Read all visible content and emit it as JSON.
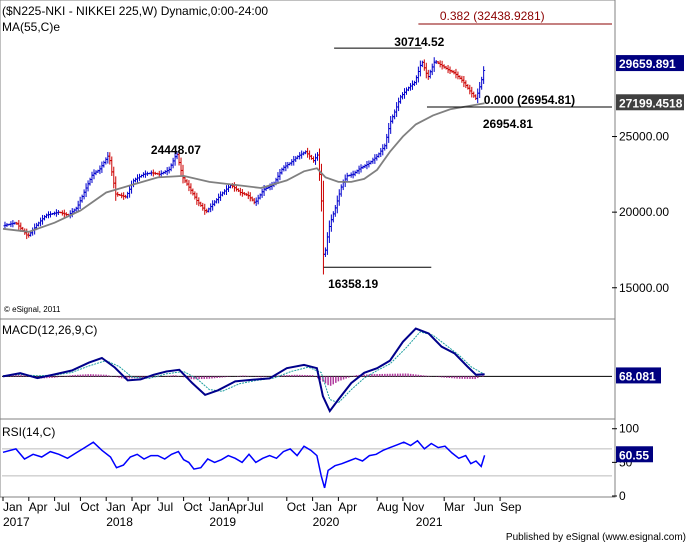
{
  "chart_data": [
    {
      "type": "candlestick",
      "title": "($N225-NKI - NIKKEI 225,W) Dynamic,0:00-24:00",
      "overlay_label": "MA(55,C)e",
      "ylim": [
        13000,
        33500
      ],
      "yticks": [
        15000,
        20000,
        25000
      ],
      "ytick_labels": [
        "15000.00",
        "20000.00",
        "25000.00"
      ],
      "x_labels": [
        {
          "m": 0,
          "text": "Jan"
        },
        {
          "m": 3,
          "text": "Apr"
        },
        {
          "m": 6,
          "text": "Jul"
        },
        {
          "m": 9,
          "text": "Oct"
        },
        {
          "m": 12,
          "text": "Jan"
        },
        {
          "m": 15,
          "text": "Apr"
        },
        {
          "m": 18,
          "text": "Jul"
        },
        {
          "m": 21,
          "text": "Oct"
        },
        {
          "m": 24,
          "text": "Jan"
        },
        {
          "m": 26.2,
          "text": "Apr"
        },
        {
          "m": 28.5,
          "text": "Jul"
        },
        {
          "m": 33,
          "text": "Oct"
        },
        {
          "m": 36,
          "text": "Jan"
        },
        {
          "m": 39,
          "text": "Apr"
        },
        {
          "m": 43.5,
          "text": "Aug"
        },
        {
          "m": 46.5,
          "text": "Nov"
        },
        {
          "m": 51.3,
          "text": "Mar"
        },
        {
          "m": 54.8,
          "text": "Jun"
        },
        {
          "m": 57.8,
          "text": "Sep"
        }
      ],
      "year_labels": [
        {
          "m": 0,
          "text": "2017"
        },
        {
          "m": 12,
          "text": "2018"
        },
        {
          "m": 24,
          "text": "2019"
        },
        {
          "m": 36,
          "text": "2020"
        },
        {
          "m": 48,
          "text": "2021"
        }
      ],
      "close_path": [
        [
          0,
          19100
        ],
        [
          1.5,
          19300
        ],
        [
          2.9,
          18400
        ],
        [
          4,
          19200
        ],
        [
          5,
          19800
        ],
        [
          6.5,
          20000
        ],
        [
          7.6,
          19800
        ],
        [
          8.6,
          20300
        ],
        [
          9.5,
          21400
        ],
        [
          10.4,
          22500
        ],
        [
          11.2,
          22800
        ],
        [
          12.3,
          23800
        ],
        [
          13.1,
          21200
        ],
        [
          14.3,
          21000
        ],
        [
          15.2,
          22100
        ],
        [
          16.3,
          22500
        ],
        [
          17.3,
          22600
        ],
        [
          18.2,
          22500
        ],
        [
          19.3,
          22800
        ],
        [
          20.2,
          23900
        ],
        [
          20.9,
          22300
        ],
        [
          21.9,
          21400
        ],
        [
          22.5,
          20800
        ],
        [
          23.6,
          20000
        ],
        [
          24.5,
          20600
        ],
        [
          25.4,
          21200
        ],
        [
          26.5,
          21800
        ],
        [
          27.6,
          21300
        ],
        [
          28.5,
          21100
        ],
        [
          29.3,
          20600
        ],
        [
          30.3,
          21500
        ],
        [
          31.4,
          21800
        ],
        [
          32.5,
          22900
        ],
        [
          33.5,
          23300
        ],
        [
          34.3,
          23700
        ],
        [
          35.2,
          24000
        ],
        [
          36.1,
          23400
        ],
        [
          36.6,
          23800
        ],
        [
          37.0,
          21200
        ],
        [
          37.3,
          16600
        ],
        [
          37.6,
          18000
        ],
        [
          38.0,
          19200
        ],
        [
          38.6,
          20200
        ],
        [
          39.4,
          21800
        ],
        [
          40.0,
          22400
        ],
        [
          40.7,
          22500
        ],
        [
          41.5,
          22900
        ],
        [
          42.5,
          23200
        ],
        [
          43.5,
          23700
        ],
        [
          44.4,
          24400
        ],
        [
          45.0,
          25900
        ],
        [
          45.6,
          26700
        ],
        [
          46.2,
          27600
        ],
        [
          47.1,
          28200
        ],
        [
          47.9,
          28600
        ],
        [
          48.7,
          30000
        ],
        [
          49.4,
          28900
        ],
        [
          50.2,
          30000
        ],
        [
          51.0,
          29700
        ],
        [
          51.8,
          29400
        ],
        [
          52.5,
          29200
        ],
        [
          53.4,
          28700
        ],
        [
          54.3,
          28000
        ],
        [
          55.0,
          27500
        ],
        [
          55.6,
          28600
        ],
        [
          56.0,
          29660
        ]
      ],
      "ma_path": [
        [
          0,
          18900
        ],
        [
          3,
          18700
        ],
        [
          6,
          19300
        ],
        [
          9,
          20100
        ],
        [
          12,
          21300
        ],
        [
          15,
          21800
        ],
        [
          18,
          22300
        ],
        [
          21,
          22400
        ],
        [
          24,
          22000
        ],
        [
          27,
          21800
        ],
        [
          30,
          21600
        ],
        [
          33,
          22100
        ],
        [
          35,
          22700
        ],
        [
          36.5,
          22900
        ],
        [
          37.5,
          22300
        ],
        [
          39,
          22000
        ],
        [
          40.5,
          22000
        ],
        [
          42,
          22200
        ],
        [
          43.5,
          22800
        ],
        [
          45,
          24000
        ],
        [
          46.5,
          25000
        ],
        [
          48,
          25800
        ],
        [
          50,
          26400
        ],
        [
          52,
          26800
        ],
        [
          54,
          27000
        ],
        [
          56,
          27199
        ]
      ],
      "reference_lines": [
        {
          "label": "0.382 (32438.9281)",
          "value": 32438.9281
        },
        {
          "label": "0.000 (26954.81)",
          "value": 26954.81
        }
      ],
      "annotations": [
        {
          "text": "30714.52",
          "value": 30714.52
        },
        {
          "text": "24448.07",
          "value": 24448.07
        },
        {
          "text": "26954.81",
          "value": 26954.81
        },
        {
          "text": "16358.19",
          "value": 16358.19
        }
      ],
      "last_price_tags": [
        {
          "text": "29659.891",
          "value": 29659.891,
          "color": "#000080"
        },
        {
          "text": "27199.4518",
          "value": 27199.4518,
          "color": "#404040"
        }
      ],
      "watermark": "© eSignal, 2011"
    },
    {
      "type": "line",
      "title": "MACD(12,26,9,C)",
      "ylim": [
        -1200,
        1650
      ],
      "histogram_path": [
        [
          0,
          0
        ],
        [
          2,
          60
        ],
        [
          4,
          -70
        ],
        [
          6,
          -40
        ],
        [
          8,
          40
        ],
        [
          10,
          70
        ],
        [
          12,
          50
        ],
        [
          14,
          -70
        ],
        [
          16,
          -50
        ],
        [
          18,
          -20
        ],
        [
          20,
          40
        ],
        [
          22,
          -90
        ],
        [
          24,
          -70
        ],
        [
          26,
          -20
        ],
        [
          28,
          30
        ],
        [
          30,
          -30
        ],
        [
          32,
          30
        ],
        [
          34,
          50
        ],
        [
          36,
          40
        ],
        [
          37,
          -120
        ],
        [
          38,
          -300
        ],
        [
          39,
          -150
        ],
        [
          41,
          40
        ],
        [
          43,
          70
        ],
        [
          45,
          80
        ],
        [
          47,
          90
        ],
        [
          49,
          30
        ],
        [
          51,
          -30
        ],
        [
          53,
          -70
        ],
        [
          55,
          -80
        ],
        [
          56,
          68
        ]
      ],
      "macd_path": [
        [
          0,
          0
        ],
        [
          2,
          100
        ],
        [
          4,
          -50
        ],
        [
          6,
          60
        ],
        [
          8,
          180
        ],
        [
          10,
          420
        ],
        [
          11.5,
          560
        ],
        [
          13,
          270
        ],
        [
          14.5,
          -120
        ],
        [
          16,
          -90
        ],
        [
          17.5,
          50
        ],
        [
          19,
          150
        ],
        [
          20.5,
          200
        ],
        [
          22,
          -200
        ],
        [
          23.5,
          -560
        ],
        [
          25,
          -420
        ],
        [
          27,
          -150
        ],
        [
          29,
          -100
        ],
        [
          31,
          -60
        ],
        [
          33,
          250
        ],
        [
          35,
          350
        ],
        [
          36.5,
          250
        ],
        [
          37.2,
          -600
        ],
        [
          38,
          -1050
        ],
        [
          39,
          -700
        ],
        [
          40.5,
          -200
        ],
        [
          42,
          110
        ],
        [
          43.5,
          250
        ],
        [
          45,
          480
        ],
        [
          46.5,
          1050
        ],
        [
          48,
          1450
        ],
        [
          49.5,
          1300
        ],
        [
          51,
          900
        ],
        [
          52.5,
          700
        ],
        [
          54,
          300
        ],
        [
          55,
          50
        ],
        [
          56,
          68
        ]
      ],
      "signal_path": [
        [
          0,
          20
        ],
        [
          2,
          60
        ],
        [
          4,
          20
        ],
        [
          6,
          40
        ],
        [
          8,
          120
        ],
        [
          10,
          320
        ],
        [
          12,
          480
        ],
        [
          13.5,
          300
        ],
        [
          15,
          -20
        ],
        [
          17,
          -60
        ],
        [
          19,
          80
        ],
        [
          21,
          150
        ],
        [
          22.5,
          -60
        ],
        [
          24,
          -400
        ],
        [
          25.5,
          -450
        ],
        [
          27.5,
          -220
        ],
        [
          29.5,
          -120
        ],
        [
          31.5,
          -50
        ],
        [
          33.5,
          150
        ],
        [
          35.5,
          280
        ],
        [
          37,
          120
        ],
        [
          38,
          -700
        ],
        [
          39,
          -800
        ],
        [
          40.5,
          -400
        ],
        [
          42,
          -50
        ],
        [
          43.5,
          180
        ],
        [
          45,
          380
        ],
        [
          47,
          900
        ],
        [
          48.5,
          1350
        ],
        [
          50,
          1250
        ],
        [
          51.5,
          950
        ],
        [
          53,
          650
        ],
        [
          54.5,
          280
        ],
        [
          56,
          60
        ]
      ],
      "last_tag": {
        "text": "68.081",
        "value": 68.081
      }
    },
    {
      "type": "line",
      "title": "RSI(14,C)",
      "ylim": [
        0,
        110
      ],
      "yticks": [
        0,
        50,
        100
      ],
      "ytick_labels": [
        "0",
        "50",
        "100"
      ],
      "rsi_path": [
        [
          0,
          65
        ],
        [
          1.5,
          70
        ],
        [
          2.5,
          55
        ],
        [
          3.5,
          62
        ],
        [
          4.5,
          58
        ],
        [
          5.5,
          66
        ],
        [
          6.5,
          62
        ],
        [
          7.5,
          56
        ],
        [
          8.5,
          64
        ],
        [
          9.5,
          72
        ],
        [
          10.5,
          80
        ],
        [
          11.5,
          68
        ],
        [
          12.5,
          58
        ],
        [
          13.2,
          42
        ],
        [
          14,
          46
        ],
        [
          14.8,
          58
        ],
        [
          15.6,
          62
        ],
        [
          16.4,
          55
        ],
        [
          17.2,
          60
        ],
        [
          18,
          60
        ],
        [
          18.8,
          55
        ],
        [
          19.6,
          62
        ],
        [
          20.4,
          66
        ],
        [
          21,
          54
        ],
        [
          21.6,
          50
        ],
        [
          22.2,
          40
        ],
        [
          23,
          42
        ],
        [
          23.8,
          55
        ],
        [
          24.6,
          50
        ],
        [
          25.4,
          54
        ],
        [
          26.2,
          60
        ],
        [
          27,
          56
        ],
        [
          27.8,
          50
        ],
        [
          28.6,
          62
        ],
        [
          29.4,
          50
        ],
        [
          30.2,
          56
        ],
        [
          31,
          60
        ],
        [
          31.8,
          56
        ],
        [
          32.6,
          66
        ],
        [
          33.4,
          70
        ],
        [
          34.2,
          60
        ],
        [
          35,
          74
        ],
        [
          35.8,
          68
        ],
        [
          36.5,
          60
        ],
        [
          37,
          30
        ],
        [
          37.4,
          12
        ],
        [
          37.8,
          38
        ],
        [
          38.6,
          45
        ],
        [
          39.4,
          48
        ],
        [
          40.2,
          52
        ],
        [
          41,
          56
        ],
        [
          41.8,
          52
        ],
        [
          42.6,
          60
        ],
        [
          43.4,
          62
        ],
        [
          44.2,
          68
        ],
        [
          45,
          72
        ],
        [
          45.8,
          76
        ],
        [
          46.6,
          80
        ],
        [
          47.4,
          75
        ],
        [
          48.2,
          82
        ],
        [
          49,
          70
        ],
        [
          49.8,
          78
        ],
        [
          50.6,
          72
        ],
        [
          51.4,
          74
        ],
        [
          52.2,
          64
        ],
        [
          53,
          56
        ],
        [
          53.8,
          60
        ],
        [
          54.4,
          48
        ],
        [
          55,
          52
        ],
        [
          55.6,
          44
        ],
        [
          56,
          60.55
        ]
      ],
      "last_tag": {
        "text": "60.55",
        "value": 60.55
      }
    }
  ],
  "footer": "Published by eSignal (www.esignal.com)"
}
